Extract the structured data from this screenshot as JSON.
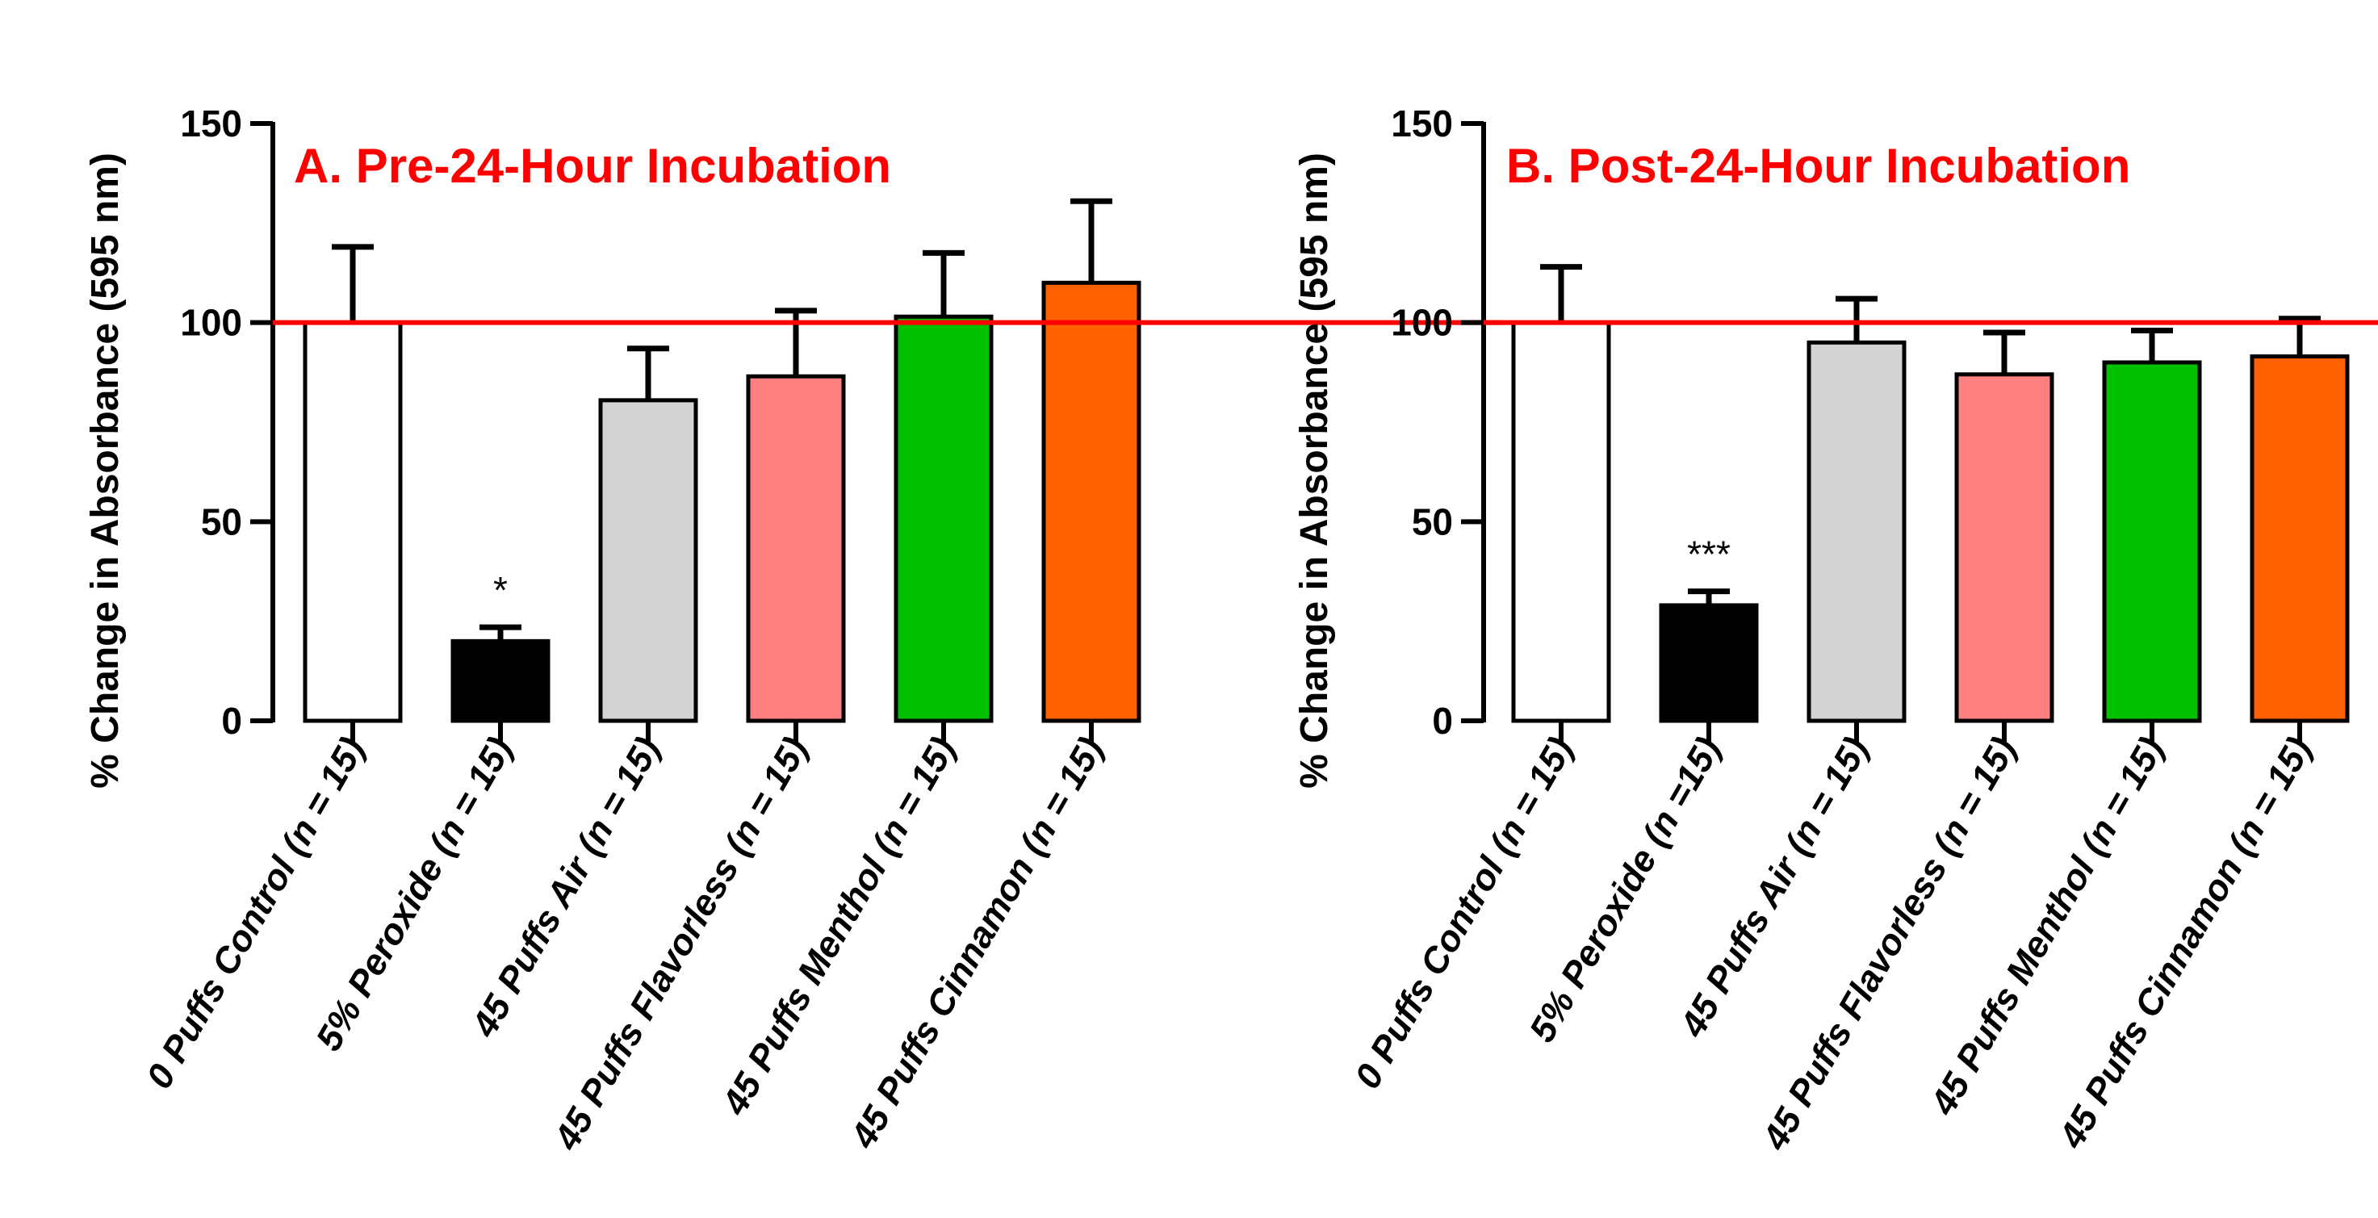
{
  "chart_data": [
    {
      "type": "bar",
      "title": "A. Pre-24-Hour Incubation",
      "title_color": "#ff0000",
      "ylabel": "% Change in Absorbance (595 nm)",
      "xlabel": "",
      "ylim": [
        0,
        150
      ],
      "yticks": [
        0,
        50,
        100,
        150
      ],
      "reference_line": {
        "value": 100,
        "color": "#ff0000"
      },
      "categories": [
        {
          "name": "0 Puffs Control",
          "n": "15",
          "sep": "= "
        },
        {
          "name": "5% Peroxide",
          "n": "15",
          "sep": "= "
        },
        {
          "name": "45 Puffs Air",
          "n": "15",
          "sep": "= "
        },
        {
          "name": "45 Puffs Flavorless ",
          "n": "15",
          "sep": "= "
        },
        {
          "name": "45 Puffs Menthol",
          "n": "15",
          "sep": "= "
        },
        {
          "name": "45 Puffs Cinnamon",
          "n": "15",
          "sep": "= "
        }
      ],
      "values": [
        100,
        20,
        80.5,
        86.5,
        101.5,
        110
      ],
      "errors": [
        19,
        3.5,
        13,
        16.5,
        16,
        20.5
      ],
      "colors": [
        "#ffffff",
        "#000000",
        "#d3d3d3",
        "#ff8080",
        "#00c000",
        "#ff6000"
      ],
      "annotations": [
        "",
        "*",
        "",
        "",
        "",
        ""
      ]
    },
    {
      "type": "bar",
      "title": "B. Post-24-Hour Incubation",
      "title_color": "#ff0000",
      "ylabel": "% Change in Absorbance (595 nm)",
      "xlabel": "",
      "ylim": [
        0,
        150
      ],
      "yticks": [
        0,
        50,
        100,
        150
      ],
      "reference_line": {
        "value": 100,
        "color": "#ff0000"
      },
      "categories": [
        {
          "name": "0 Puffs Control",
          "n": "15",
          "sep": "= "
        },
        {
          "name": "5% Peroxide",
          "n": "15",
          "sep": "="
        },
        {
          "name": "45 Puffs Air",
          "n": "15",
          "sep": "= "
        },
        {
          "name": "45 Puffs Flavorless ",
          "n": "15",
          "sep": "= "
        },
        {
          "name": "45 Puffs Menthol",
          "n": "15",
          "sep": "= "
        },
        {
          "name": "45 Puffs Cinnamon",
          "n": "15",
          "sep": "= "
        }
      ],
      "values": [
        100,
        29,
        95,
        87,
        90,
        91.5
      ],
      "errors": [
        14,
        3.5,
        11,
        10.5,
        8,
        9.5
      ],
      "colors": [
        "#ffffff",
        "#000000",
        "#d3d3d3",
        "#ff8080",
        "#00c000",
        "#ff6000"
      ],
      "annotations": [
        "",
        "***",
        "",
        "",
        "",
        ""
      ]
    }
  ]
}
